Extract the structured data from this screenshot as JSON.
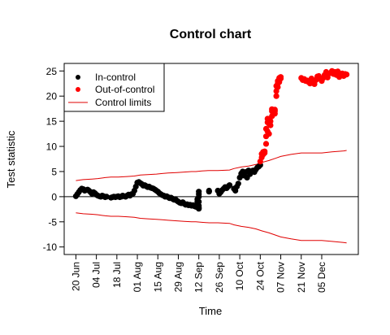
{
  "chart_data": {
    "type": "scatter",
    "title": "Control chart",
    "xlabel": "Time",
    "ylabel": "Test statistic",
    "xlim": [
      "2014-06-12",
      "2014-12-30"
    ],
    "ylim": [
      -11.5,
      26.5
    ],
    "x_tick_labels": [
      "20 Jun",
      "04 Jul",
      "18 Jul",
      "01 Aug",
      "15 Aug",
      "29 Aug",
      "12 Sep",
      "26 Sep",
      "10 Oct",
      "24 Oct",
      "07 Nov",
      "21 Nov",
      "05 Dec"
    ],
    "x_ticks": [
      "2014-06-20",
      "2014-07-04",
      "2014-07-18",
      "2014-08-01",
      "2014-08-15",
      "2014-08-29",
      "2014-09-12",
      "2014-09-26",
      "2014-10-10",
      "2014-10-24",
      "2014-11-07",
      "2014-11-21",
      "2014-12-05"
    ],
    "y_ticks": [
      -10,
      -5,
      0,
      5,
      10,
      15,
      20,
      25
    ],
    "y_tick_labels": [
      "-10",
      "-5",
      "0",
      "5",
      "10",
      "15",
      "20",
      "25"
    ],
    "reference_line": 0,
    "grid": false,
    "legend_position": "top-left",
    "legend": [
      "In-control",
      "Out-of-control",
      "Control limits"
    ],
    "colors": {
      "in_control": "#000000",
      "out_of_control": "#ff0000",
      "limits": "#e00000"
    },
    "in_control": {
      "x": [
        "2014-06-20",
        "2014-06-21",
        "2014-06-22",
        "2014-06-23",
        "2014-06-24",
        "2014-06-25",
        "2014-06-26",
        "2014-06-27",
        "2014-06-28",
        "2014-06-29",
        "2014-06-30",
        "2014-07-01",
        "2014-07-02",
        "2014-07-03",
        "2014-07-04",
        "2014-07-05",
        "2014-07-06",
        "2014-07-07",
        "2014-07-08",
        "2014-07-09",
        "2014-07-10",
        "2014-07-11",
        "2014-07-14",
        "2014-07-15",
        "2014-07-16",
        "2014-07-17",
        "2014-07-18",
        "2014-07-19",
        "2014-07-20",
        "2014-07-21",
        "2014-07-22",
        "2014-07-23",
        "2014-07-24",
        "2014-07-25",
        "2014-07-26",
        "2014-07-27",
        "2014-07-28",
        "2014-07-29",
        "2014-07-30",
        "2014-07-31",
        "2014-08-01",
        "2014-08-02",
        "2014-08-03",
        "2014-08-04",
        "2014-08-05",
        "2014-08-06",
        "2014-08-07",
        "2014-08-08",
        "2014-08-09",
        "2014-08-10",
        "2014-08-11",
        "2014-08-12",
        "2014-08-13",
        "2014-08-14",
        "2014-08-15",
        "2014-08-16",
        "2014-08-17",
        "2014-08-18",
        "2014-08-19",
        "2014-08-20",
        "2014-08-21",
        "2014-08-22",
        "2014-08-23",
        "2014-08-24",
        "2014-08-25",
        "2014-08-26",
        "2014-08-27",
        "2014-08-28",
        "2014-08-29",
        "2014-08-30",
        "2014-08-31",
        "2014-09-01",
        "2014-09-02",
        "2014-09-03",
        "2014-09-04",
        "2014-09-05",
        "2014-09-06",
        "2014-09-07",
        "2014-09-08",
        "2014-09-09",
        "2014-09-10",
        "2014-09-11",
        "2014-09-11",
        "2014-09-11",
        "2014-09-11",
        "2014-09-12",
        "2014-09-12",
        "2014-09-12",
        "2014-09-12",
        "2014-09-12",
        "2014-09-12",
        "2014-09-12",
        "2014-09-19",
        "2014-09-19",
        "2014-09-25",
        "2014-09-26",
        "2014-09-27",
        "2014-09-28",
        "2014-09-29",
        "2014-09-30",
        "2014-10-01",
        "2014-10-02",
        "2014-10-03",
        "2014-10-06",
        "2014-10-07",
        "2014-10-08",
        "2014-10-09",
        "2014-10-10",
        "2014-10-11",
        "2014-10-12",
        "2014-10-13",
        "2014-10-14",
        "2014-10-15",
        "2014-10-16",
        "2014-10-17",
        "2014-10-18",
        "2014-10-19",
        "2014-10-20",
        "2014-10-21",
        "2014-10-22",
        "2014-10-23",
        "2014-10-24"
      ],
      "y": [
        0.1,
        0.5,
        0.9,
        1.3,
        1.6,
        1.5,
        1.2,
        1.3,
        1.4,
        1.2,
        0.9,
        0.6,
        0.9,
        0.7,
        0.4,
        0.2,
        0.1,
        0.0,
        0.2,
        0.1,
        -0.1,
        0.0,
        -0.2,
        -0.1,
        0.0,
        -0.1,
        0.0,
        0.1,
        -0.1,
        0.0,
        0.2,
        0.1,
        0.0,
        0.2,
        0.4,
        0.2,
        0.5,
        0.6,
        1.2,
        2.0,
        2.8,
        2.9,
        2.7,
        2.5,
        2.2,
        2.3,
        2.1,
        1.9,
        2.0,
        1.8,
        1.7,
        1.6,
        1.4,
        1.2,
        1.0,
        0.7,
        0.5,
        0.3,
        0.2,
        0.0,
        0.1,
        -0.1,
        -0.3,
        -0.2,
        -0.4,
        -0.6,
        -0.5,
        -0.8,
        -1.0,
        -1.2,
        -1.3,
        -1.1,
        -1.4,
        -1.6,
        -1.5,
        -1.7,
        -1.6,
        -1.8,
        -1.7,
        -1.9,
        -2.0,
        -2.1,
        -1.5,
        -1.0,
        -0.5,
        0.0,
        0.5,
        1.0,
        -1.8,
        -2.2,
        -2.4,
        -1.0,
        1.2,
        1.0,
        1.2,
        0.6,
        0.9,
        1.3,
        1.6,
        1.9,
        1.7,
        2.0,
        2.3,
        1.6,
        1.2,
        2.0,
        2.6,
        3.8,
        4.6,
        5.0,
        4.2,
        4.9,
        3.8,
        5.2,
        4.5,
        5.0,
        5.2,
        4.9,
        5.4,
        5.8,
        6.0,
        6.3
      ]
    },
    "out_of_control": {
      "x": [
        "2014-10-24",
        "2014-10-25",
        "2014-10-25",
        "2014-10-26",
        "2014-10-26",
        "2014-10-27",
        "2014-10-27",
        "2014-10-28",
        "2014-10-28",
        "2014-10-28",
        "2014-10-29",
        "2014-10-29",
        "2014-10-29",
        "2014-10-30",
        "2014-10-30",
        "2014-10-31",
        "2014-10-31",
        "2014-11-01",
        "2014-11-01",
        "2014-11-01",
        "2014-11-02",
        "2014-11-02",
        "2014-11-03",
        "2014-11-03",
        "2014-11-03",
        "2014-11-04",
        "2014-11-04",
        "2014-11-04",
        "2014-11-05",
        "2014-11-05",
        "2014-11-05",
        "2014-11-06",
        "2014-11-06",
        "2014-11-06",
        "2014-11-07",
        "2014-11-07",
        "2014-11-21",
        "2014-11-22",
        "2014-11-23",
        "2014-11-24",
        "2014-11-25",
        "2014-11-26",
        "2014-11-27",
        "2014-11-28",
        "2014-11-29",
        "2014-11-30",
        "2014-12-01",
        "2014-12-02",
        "2014-12-03",
        "2014-12-04",
        "2014-12-05",
        "2014-12-06",
        "2014-12-07",
        "2014-12-08",
        "2014-12-09",
        "2014-12-10",
        "2014-12-11",
        "2014-12-12",
        "2014-12-13",
        "2014-12-14",
        "2014-12-15",
        "2014-12-16",
        "2014-12-17",
        "2014-12-18",
        "2014-12-19",
        "2014-12-20",
        "2014-12-21",
        "2014-12-22"
      ],
      "y": [
        7.0,
        7.8,
        8.5,
        8.9,
        8.4,
        9.0,
        8.7,
        10.5,
        12.0,
        13.5,
        14.8,
        15.5,
        13.0,
        12.5,
        14.5,
        15.0,
        14.2,
        16.0,
        17.0,
        17.4,
        16.8,
        17.2,
        17.0,
        16.5,
        17.3,
        20.0,
        21.0,
        22.0,
        22.5,
        21.8,
        23.0,
        22.8,
        23.3,
        23.6,
        23.8,
        23.5,
        23.6,
        23.2,
        23.4,
        23.0,
        23.1,
        22.8,
        22.5,
        23.5,
        22.7,
        22.4,
        23.2,
        23.9,
        24.0,
        23.4,
        23.0,
        23.6,
        24.2,
        24.8,
        23.7,
        24.5,
        24.6,
        25.0,
        24.4,
        24.8,
        24.2,
        24.9,
        23.8,
        24.3,
        24.5,
        24.0,
        24.4,
        24.3
      ]
    },
    "upper_limit": {
      "x": [
        "2014-06-20",
        "2014-06-25",
        "2014-07-01",
        "2014-07-05",
        "2014-07-10",
        "2014-07-14",
        "2014-07-19",
        "2014-07-25",
        "2014-07-30",
        "2014-08-03",
        "2014-08-08",
        "2014-08-14",
        "2014-08-18",
        "2014-08-22",
        "2014-08-28",
        "2014-09-02",
        "2014-09-07",
        "2014-09-10",
        "2014-09-14",
        "2014-09-19",
        "2014-09-25",
        "2014-10-03",
        "2014-10-06",
        "2014-10-11",
        "2014-10-16",
        "2014-10-21",
        "2014-10-25",
        "2014-10-30",
        "2014-11-04",
        "2014-11-07",
        "2014-11-14",
        "2014-11-21",
        "2014-11-28",
        "2014-12-05",
        "2014-12-12",
        "2014-12-20",
        "2014-12-22"
      ],
      "y": [
        3.2,
        3.4,
        3.5,
        3.6,
        3.8,
        3.9,
        3.9,
        4.0,
        4.1,
        4.3,
        4.4,
        4.5,
        4.6,
        4.7,
        4.8,
        4.9,
        5.0,
        5.0,
        5.1,
        5.2,
        5.2,
        5.3,
        5.6,
        5.9,
        6.1,
        6.4,
        6.8,
        7.2,
        7.7,
        8.0,
        8.4,
        8.7,
        8.7,
        8.7,
        8.9,
        9.1,
        9.2
      ]
    },
    "lower_limit": {
      "x": [
        "2014-06-20",
        "2014-06-25",
        "2014-07-01",
        "2014-07-05",
        "2014-07-10",
        "2014-07-14",
        "2014-07-19",
        "2014-07-25",
        "2014-07-30",
        "2014-08-03",
        "2014-08-08",
        "2014-08-14",
        "2014-08-18",
        "2014-08-22",
        "2014-08-28",
        "2014-09-02",
        "2014-09-07",
        "2014-09-10",
        "2014-09-14",
        "2014-09-19",
        "2014-09-25",
        "2014-10-03",
        "2014-10-06",
        "2014-10-11",
        "2014-10-16",
        "2014-10-21",
        "2014-10-25",
        "2014-10-30",
        "2014-11-04",
        "2014-11-07",
        "2014-11-14",
        "2014-11-21",
        "2014-11-28",
        "2014-12-05",
        "2014-12-12",
        "2014-12-20",
        "2014-12-22"
      ],
      "y": [
        -3.2,
        -3.4,
        -3.5,
        -3.6,
        -3.8,
        -3.9,
        -3.9,
        -4.0,
        -4.1,
        -4.3,
        -4.4,
        -4.5,
        -4.6,
        -4.7,
        -4.8,
        -4.9,
        -5.0,
        -5.0,
        -5.1,
        -5.2,
        -5.2,
        -5.3,
        -5.6,
        -5.9,
        -6.1,
        -6.4,
        -6.8,
        -7.2,
        -7.7,
        -8.0,
        -8.4,
        -8.7,
        -8.7,
        -8.7,
        -8.9,
        -9.1,
        -9.2
      ]
    }
  }
}
